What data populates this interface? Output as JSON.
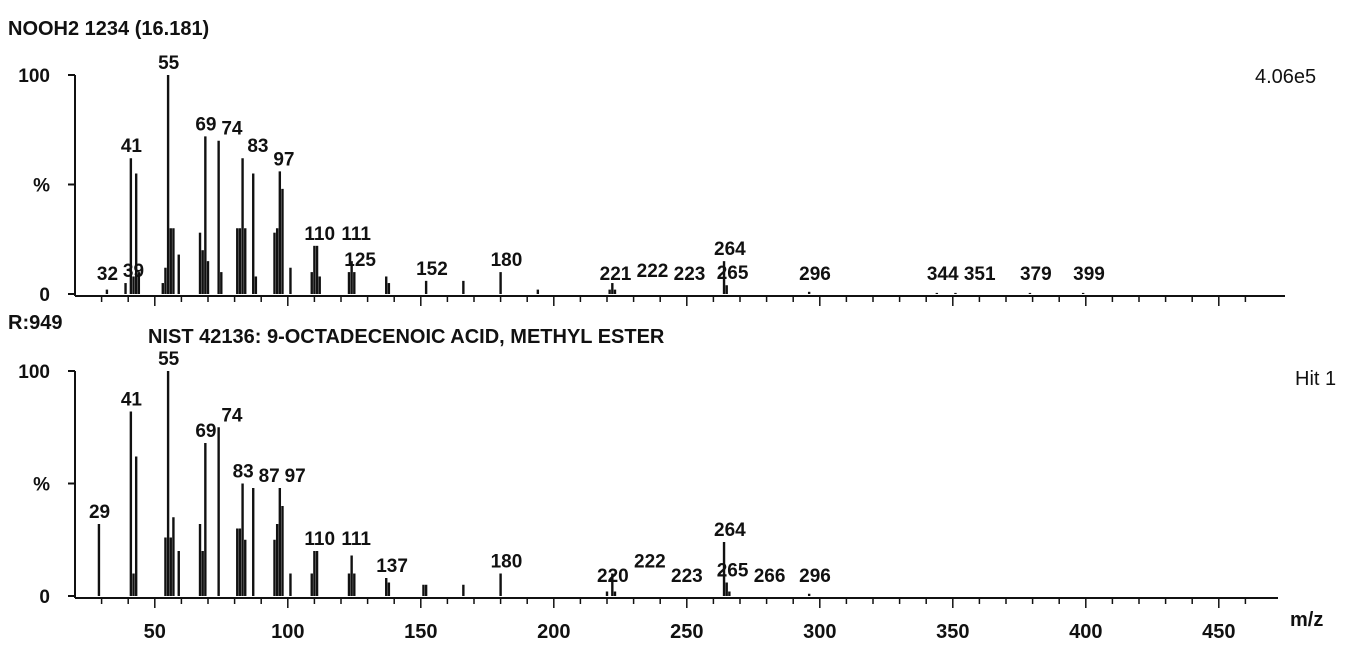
{
  "chart_data": [
    {
      "type": "bar",
      "title": "NOOH2 1234 (16.181)",
      "scale_label": "4.06e5",
      "ylabel": "%",
      "xlabel": "",
      "ylim": [
        0,
        100
      ],
      "xlim": [
        20,
        460
      ],
      "y_ticks": [
        "100",
        "%",
        "0"
      ],
      "peaks": [
        {
          "x": 32,
          "y": 2,
          "label": "32"
        },
        {
          "x": 39,
          "y": 5,
          "label": "39"
        },
        {
          "x": 41,
          "y": 62,
          "label": "41"
        },
        {
          "x": 42,
          "y": 8
        },
        {
          "x": 43,
          "y": 55
        },
        {
          "x": 44,
          "y": 10
        },
        {
          "x": 53,
          "y": 5
        },
        {
          "x": 54,
          "y": 12
        },
        {
          "x": 55,
          "y": 100,
          "label": "55"
        },
        {
          "x": 56,
          "y": 30
        },
        {
          "x": 57,
          "y": 30
        },
        {
          "x": 59,
          "y": 18
        },
        {
          "x": 67,
          "y": 28
        },
        {
          "x": 68,
          "y": 20
        },
        {
          "x": 69,
          "y": 72,
          "label": "69"
        },
        {
          "x": 70,
          "y": 15
        },
        {
          "x": 74,
          "y": 70,
          "label": "74"
        },
        {
          "x": 75,
          "y": 10
        },
        {
          "x": 81,
          "y": 30
        },
        {
          "x": 82,
          "y": 30
        },
        {
          "x": 83,
          "y": 62,
          "label": "83"
        },
        {
          "x": 84,
          "y": 30
        },
        {
          "x": 87,
          "y": 55
        },
        {
          "x": 88,
          "y": 8
        },
        {
          "x": 95,
          "y": 28
        },
        {
          "x": 96,
          "y": 30
        },
        {
          "x": 97,
          "y": 56,
          "label": "97"
        },
        {
          "x": 98,
          "y": 48
        },
        {
          "x": 101,
          "y": 12
        },
        {
          "x": 109,
          "y": 10
        },
        {
          "x": 110,
          "y": 22,
          "label": "110"
        },
        {
          "x": 111,
          "y": 22,
          "label": "111"
        },
        {
          "x": 112,
          "y": 8
        },
        {
          "x": 123,
          "y": 10
        },
        {
          "x": 124,
          "y": 15
        },
        {
          "x": 125,
          "y": 10,
          "label": "125"
        },
        {
          "x": 137,
          "y": 8
        },
        {
          "x": 138,
          "y": 5
        },
        {
          "x": 152,
          "y": 6,
          "label": "152"
        },
        {
          "x": 166,
          "y": 6
        },
        {
          "x": 180,
          "y": 10,
          "label": "180"
        },
        {
          "x": 194,
          "y": 2
        },
        {
          "x": 221,
          "y": 2,
          "label": "221"
        },
        {
          "x": 222,
          "y": 5,
          "label": "222"
        },
        {
          "x": 223,
          "y": 2,
          "label": "223"
        },
        {
          "x": 264,
          "y": 15,
          "label": "264"
        },
        {
          "x": 265,
          "y": 4,
          "label": "265"
        },
        {
          "x": 296,
          "y": 1,
          "label": "296"
        },
        {
          "x": 344,
          "y": 0.5,
          "label": "344"
        },
        {
          "x": 351,
          "y": 0.5,
          "label": "351"
        },
        {
          "x": 379,
          "y": 0.5,
          "label": "379"
        },
        {
          "x": 399,
          "y": 0.5,
          "label": "399"
        }
      ]
    },
    {
      "type": "bar",
      "title": "NIST  42136: 9-OCTADECENOIC ACID, METHYL ESTER",
      "header_left": "R:949",
      "scale_label": "Hit 1",
      "ylabel": "%",
      "xlabel": "m/z",
      "ylim": [
        0,
        100
      ],
      "xlim": [
        20,
        460
      ],
      "y_ticks": [
        "100",
        "%",
        "0"
      ],
      "x_ticks": [
        "50",
        "100",
        "150",
        "200",
        "250",
        "300",
        "350",
        "400",
        "450"
      ],
      "peaks": [
        {
          "x": 29,
          "y": 32,
          "label": "29"
        },
        {
          "x": 41,
          "y": 82,
          "label": "41"
        },
        {
          "x": 42,
          "y": 10
        },
        {
          "x": 43,
          "y": 62
        },
        {
          "x": 54,
          "y": 26
        },
        {
          "x": 55,
          "y": 100,
          "label": "55"
        },
        {
          "x": 56,
          "y": 26
        },
        {
          "x": 57,
          "y": 35
        },
        {
          "x": 59,
          "y": 20
        },
        {
          "x": 67,
          "y": 32
        },
        {
          "x": 68,
          "y": 20
        },
        {
          "x": 69,
          "y": 68,
          "label": "69"
        },
        {
          "x": 74,
          "y": 75,
          "label": "74"
        },
        {
          "x": 81,
          "y": 30
        },
        {
          "x": 82,
          "y": 30
        },
        {
          "x": 83,
          "y": 50,
          "label": "83"
        },
        {
          "x": 84,
          "y": 25
        },
        {
          "x": 87,
          "y": 48,
          "label": "87"
        },
        {
          "x": 95,
          "y": 25
        },
        {
          "x": 96,
          "y": 32
        },
        {
          "x": 97,
          "y": 48,
          "label": "97"
        },
        {
          "x": 98,
          "y": 40
        },
        {
          "x": 101,
          "y": 10
        },
        {
          "x": 109,
          "y": 10
        },
        {
          "x": 110,
          "y": 20,
          "label": "110"
        },
        {
          "x": 111,
          "y": 20,
          "label": "111"
        },
        {
          "x": 123,
          "y": 10
        },
        {
          "x": 124,
          "y": 18
        },
        {
          "x": 125,
          "y": 10
        },
        {
          "x": 137,
          "y": 8,
          "label": "137"
        },
        {
          "x": 138,
          "y": 6
        },
        {
          "x": 151,
          "y": 5
        },
        {
          "x": 152,
          "y": 5
        },
        {
          "x": 166,
          "y": 5
        },
        {
          "x": 180,
          "y": 10,
          "label": "180"
        },
        {
          "x": 220,
          "y": 2,
          "label": "220"
        },
        {
          "x": 222,
          "y": 10,
          "label": "222"
        },
        {
          "x": 223,
          "y": 2,
          "label": "223"
        },
        {
          "x": 264,
          "y": 24,
          "label": "264"
        },
        {
          "x": 265,
          "y": 6,
          "label": "265"
        },
        {
          "x": 266,
          "y": 2,
          "label": "266"
        },
        {
          "x": 296,
          "y": 1,
          "label": "296"
        }
      ]
    }
  ]
}
